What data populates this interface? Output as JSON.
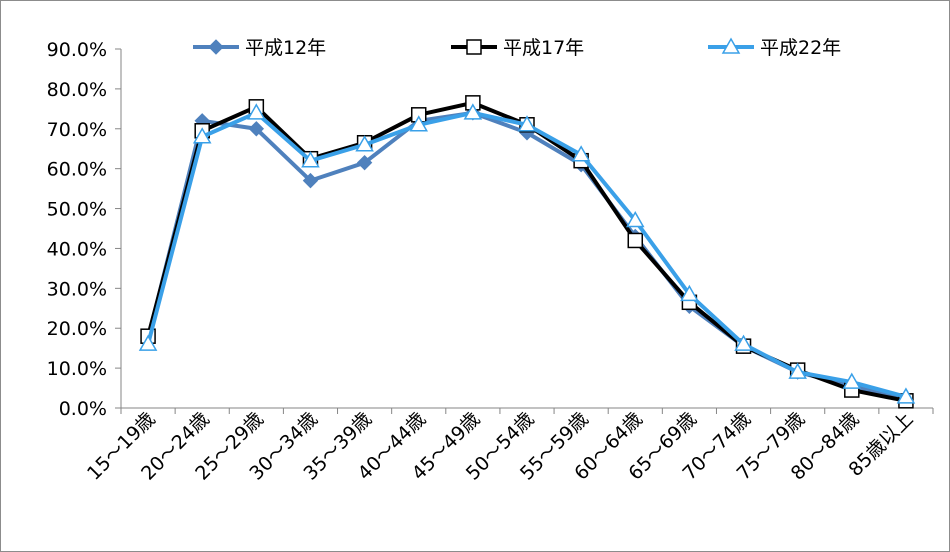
{
  "chart_data": {
    "type": "line",
    "title": "",
    "xlabel": "",
    "ylabel": "",
    "categories": [
      "15～19歳",
      "20～24歳",
      "25～29歳",
      "30～34歳",
      "35～39歳",
      "40～44歳",
      "45～49歳",
      "50～54歳",
      "55～59歳",
      "60～64歳",
      "65～69歳",
      "70～74歳",
      "75～79歳",
      "80～84歳",
      "85歳以上"
    ],
    "y_tick_labels": [
      "0.0%",
      "10.0%",
      "20.0%",
      "30.0%",
      "40.0%",
      "50.0%",
      "60.0%",
      "70.0%",
      "80.0%",
      "90.0%"
    ],
    "ylim": [
      0,
      90
    ],
    "y_unit": "percent",
    "grid": false,
    "legend_position": "top",
    "series": [
      {
        "name": "平成12年",
        "color": "#4f81bd",
        "marker": "diamond",
        "values": [
          17.5,
          72.0,
          70.0,
          57.0,
          61.5,
          72.0,
          74.0,
          69.0,
          61.0,
          43.0,
          25.5,
          15.5,
          9.0,
          5.5,
          2.0
        ]
      },
      {
        "name": "平成17年",
        "color": "#000000",
        "marker": "square",
        "values": [
          18.0,
          69.5,
          75.5,
          62.5,
          66.5,
          73.5,
          76.5,
          71.0,
          62.0,
          42.0,
          26.5,
          15.5,
          9.5,
          4.5,
          1.8
        ]
      },
      {
        "name": "平成22年",
        "color": "#3aa0e8",
        "marker": "triangle",
        "values": [
          16.0,
          68.0,
          74.0,
          62.0,
          66.0,
          71.0,
          74.0,
          71.0,
          63.5,
          47.0,
          28.5,
          16.0,
          9.0,
          6.5,
          2.8
        ]
      }
    ]
  }
}
